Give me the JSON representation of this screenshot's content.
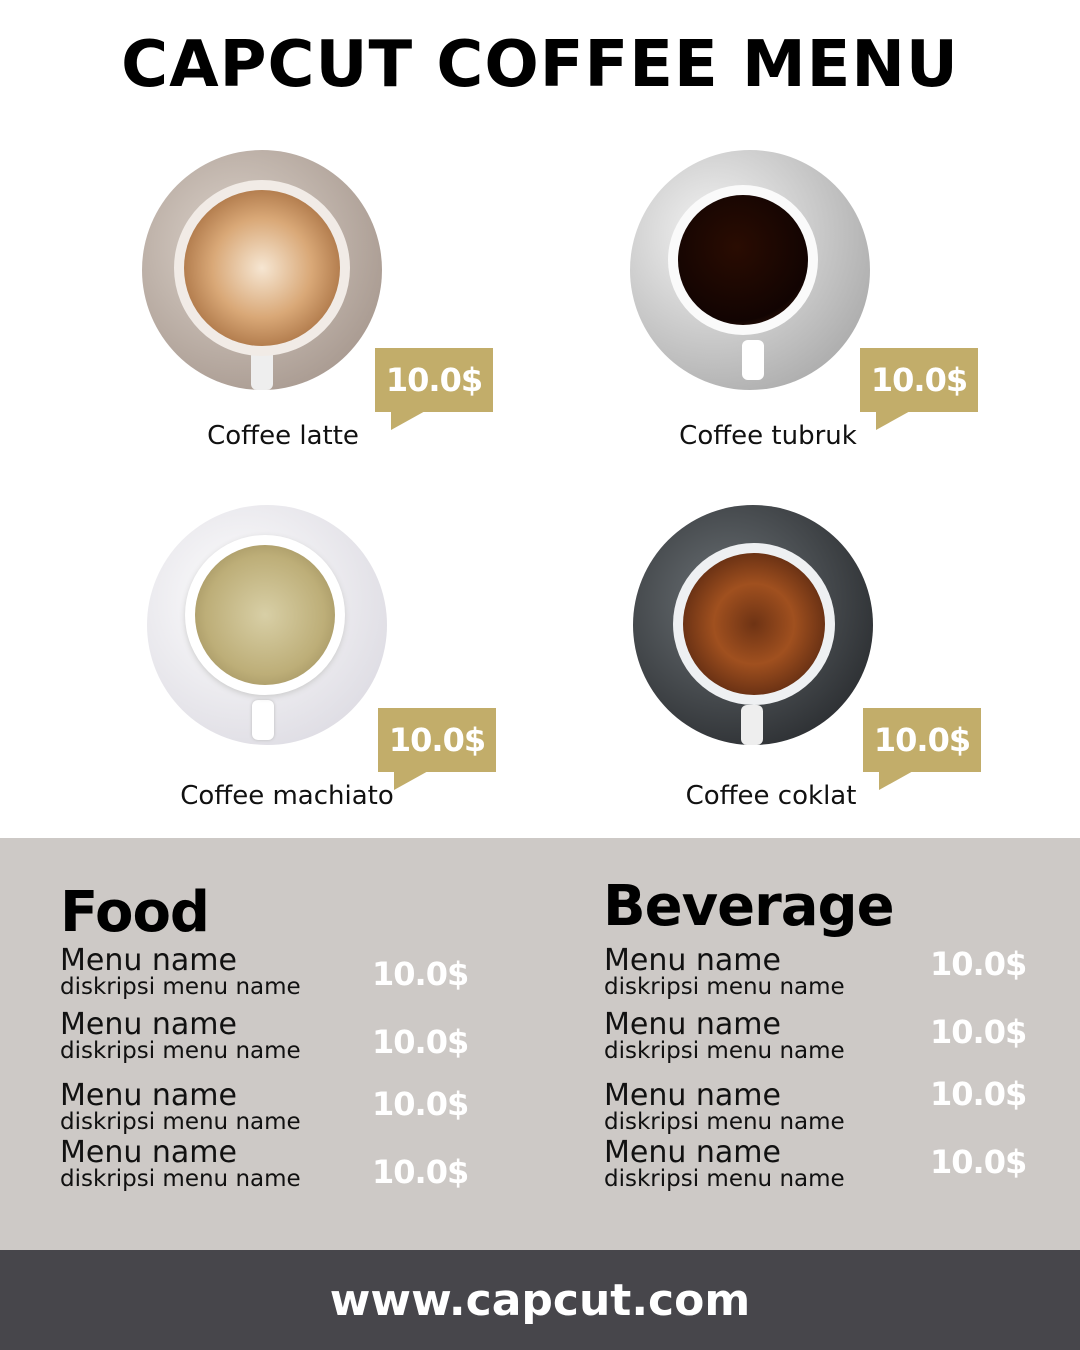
{
  "title": "CAPCUT COFFEE MENU",
  "products": [
    {
      "name": "Coffee latte",
      "price": "10.0$"
    },
    {
      "name": "Coffee tubruk",
      "price": "10.0$"
    },
    {
      "name": "Coffee machiato",
      "price": "10.0$"
    },
    {
      "name": "Coffee coklat",
      "price": "10.0$"
    }
  ],
  "food": {
    "heading": "Food",
    "items": [
      {
        "name": "Menu name",
        "desc": "diskripsi menu name",
        "price": "10.0$"
      },
      {
        "name": "Menu name",
        "desc": "diskripsi menu name",
        "price": "10.0$"
      },
      {
        "name": "Menu name",
        "desc": "diskripsi menu name",
        "price": "10.0$"
      },
      {
        "name": "Menu name",
        "desc": "diskripsi menu name",
        "price": "10.0$"
      }
    ]
  },
  "beverage": {
    "heading": "Beverage",
    "items": [
      {
        "name": "Menu name",
        "desc": "diskripsi menu name",
        "price": "10.0$"
      },
      {
        "name": "Menu name",
        "desc": "diskripsi menu name",
        "price": "10.0$"
      },
      {
        "name": "Menu name",
        "desc": "diskripsi menu name",
        "price": "10.0$"
      },
      {
        "name": "Menu name",
        "desc": "diskripsi menu name",
        "price": "10.0$"
      }
    ]
  },
  "footer": {
    "url": "www.capcut.com"
  },
  "colors": {
    "accent": "#c2ad6a",
    "band": "#cdc9c6",
    "footer": "#47464b"
  }
}
